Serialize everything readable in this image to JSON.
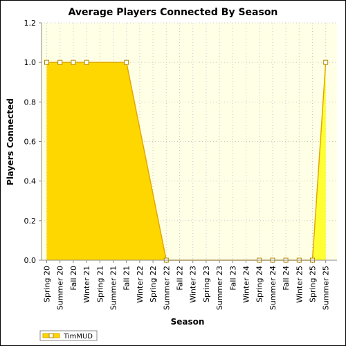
{
  "chart_data": {
    "type": "area",
    "title": "Average Players Connected By Season",
    "xlabel": "Season",
    "ylabel": "Players Connected",
    "ylim": [
      0,
      1.2
    ],
    "yticks": [
      "0.0",
      "0.2",
      "0.4",
      "0.6",
      "0.8",
      "1.0",
      "1.2"
    ],
    "categories": [
      "Spring 20",
      "Summer 20",
      "Fall 20",
      "Winter 21",
      "Spring 21",
      "Summer 21",
      "Fall 21",
      "Winter 22",
      "Spring 22",
      "Summer 22",
      "Fall 22",
      "Winter 23",
      "Spring 23",
      "Summer 23",
      "Fall 23",
      "Winter 24",
      "Spring 24",
      "Summer 24",
      "Fall 24",
      "Winter 25",
      "Spring 25",
      "Summer 25"
    ],
    "series": [
      {
        "name": "TimMUD",
        "values": [
          1,
          1,
          1,
          1,
          null,
          null,
          1,
          null,
          null,
          0,
          null,
          null,
          null,
          null,
          null,
          null,
          0,
          0,
          0,
          0,
          0,
          1
        ]
      }
    ],
    "legend_position": "bottom-left",
    "grid": true,
    "colors": {
      "plot_background": "#FFFFE6",
      "area_fill": "#FFD700",
      "area_fill_light": "#FFFF33",
      "line": "#E0A800",
      "marker_fill": "#FFFFFF"
    }
  }
}
